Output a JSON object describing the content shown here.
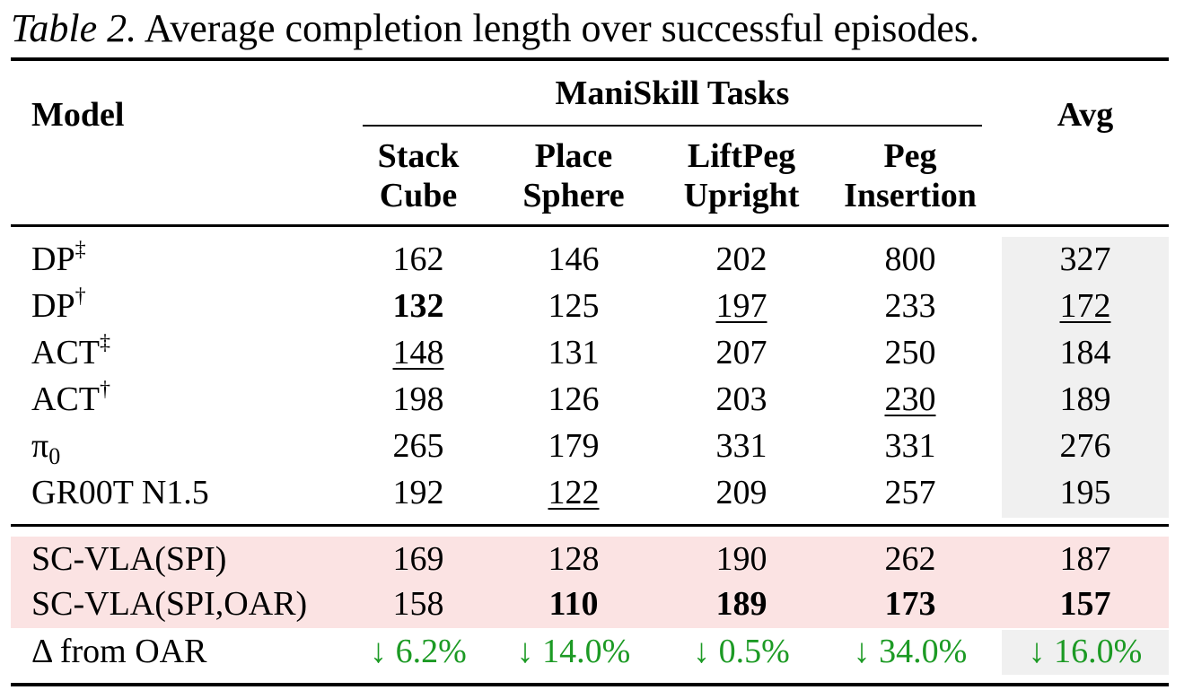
{
  "caption": {
    "label": "Table 2.",
    "text": " Average completion length over successful episodes."
  },
  "headers": {
    "model": "Model",
    "group": "ManiSkill Tasks",
    "avg": "Avg",
    "tasks": [
      {
        "line1": "Stack",
        "line2": "Cube"
      },
      {
        "line1": "Place",
        "line2": "Sphere"
      },
      {
        "line1": "LiftPeg",
        "line2": "Upright"
      },
      {
        "line1": "Peg",
        "line2": "Insertion"
      }
    ]
  },
  "baselines": [
    {
      "name": "DP",
      "mark": "‡",
      "values": [
        "162",
        "146",
        "202",
        "800"
      ],
      "avg": "327"
    },
    {
      "name": "DP",
      "mark": "†",
      "values": [
        "132",
        "125",
        "197",
        "233"
      ],
      "avg": "172"
    },
    {
      "name": "ACT",
      "mark": "‡",
      "values": [
        "148",
        "131",
        "207",
        "250"
      ],
      "avg": "184"
    },
    {
      "name": "ACT",
      "mark": "†",
      "values": [
        "198",
        "126",
        "203",
        "230"
      ],
      "avg": "189"
    },
    {
      "name": "π",
      "sub": "0",
      "values": [
        "265",
        "179",
        "331",
        "331"
      ],
      "avg": "276"
    },
    {
      "name": "GR00T N1.5",
      "values": [
        "192",
        "122",
        "209",
        "257"
      ],
      "avg": "195"
    }
  ],
  "ours": [
    {
      "name": "SC-VLA(SPI)",
      "values": [
        "169",
        "128",
        "190",
        "262"
      ],
      "avg": "187"
    },
    {
      "name": "SC-VLA(SPI,OAR)",
      "values": [
        "158",
        "110",
        "189",
        "173"
      ],
      "avg": "157"
    }
  ],
  "delta": {
    "name": "Δ from OAR",
    "values": [
      "↓ 6.2%",
      "↓ 14.0%",
      "↓ 0.5%",
      "↓ 34.0%"
    ],
    "avg": "↓ 16.0%"
  },
  "colors": {
    "improvement": "#1c9a24",
    "ours_highlight": "#fbe3e3",
    "avg_shade": "#f0f0f0"
  }
}
